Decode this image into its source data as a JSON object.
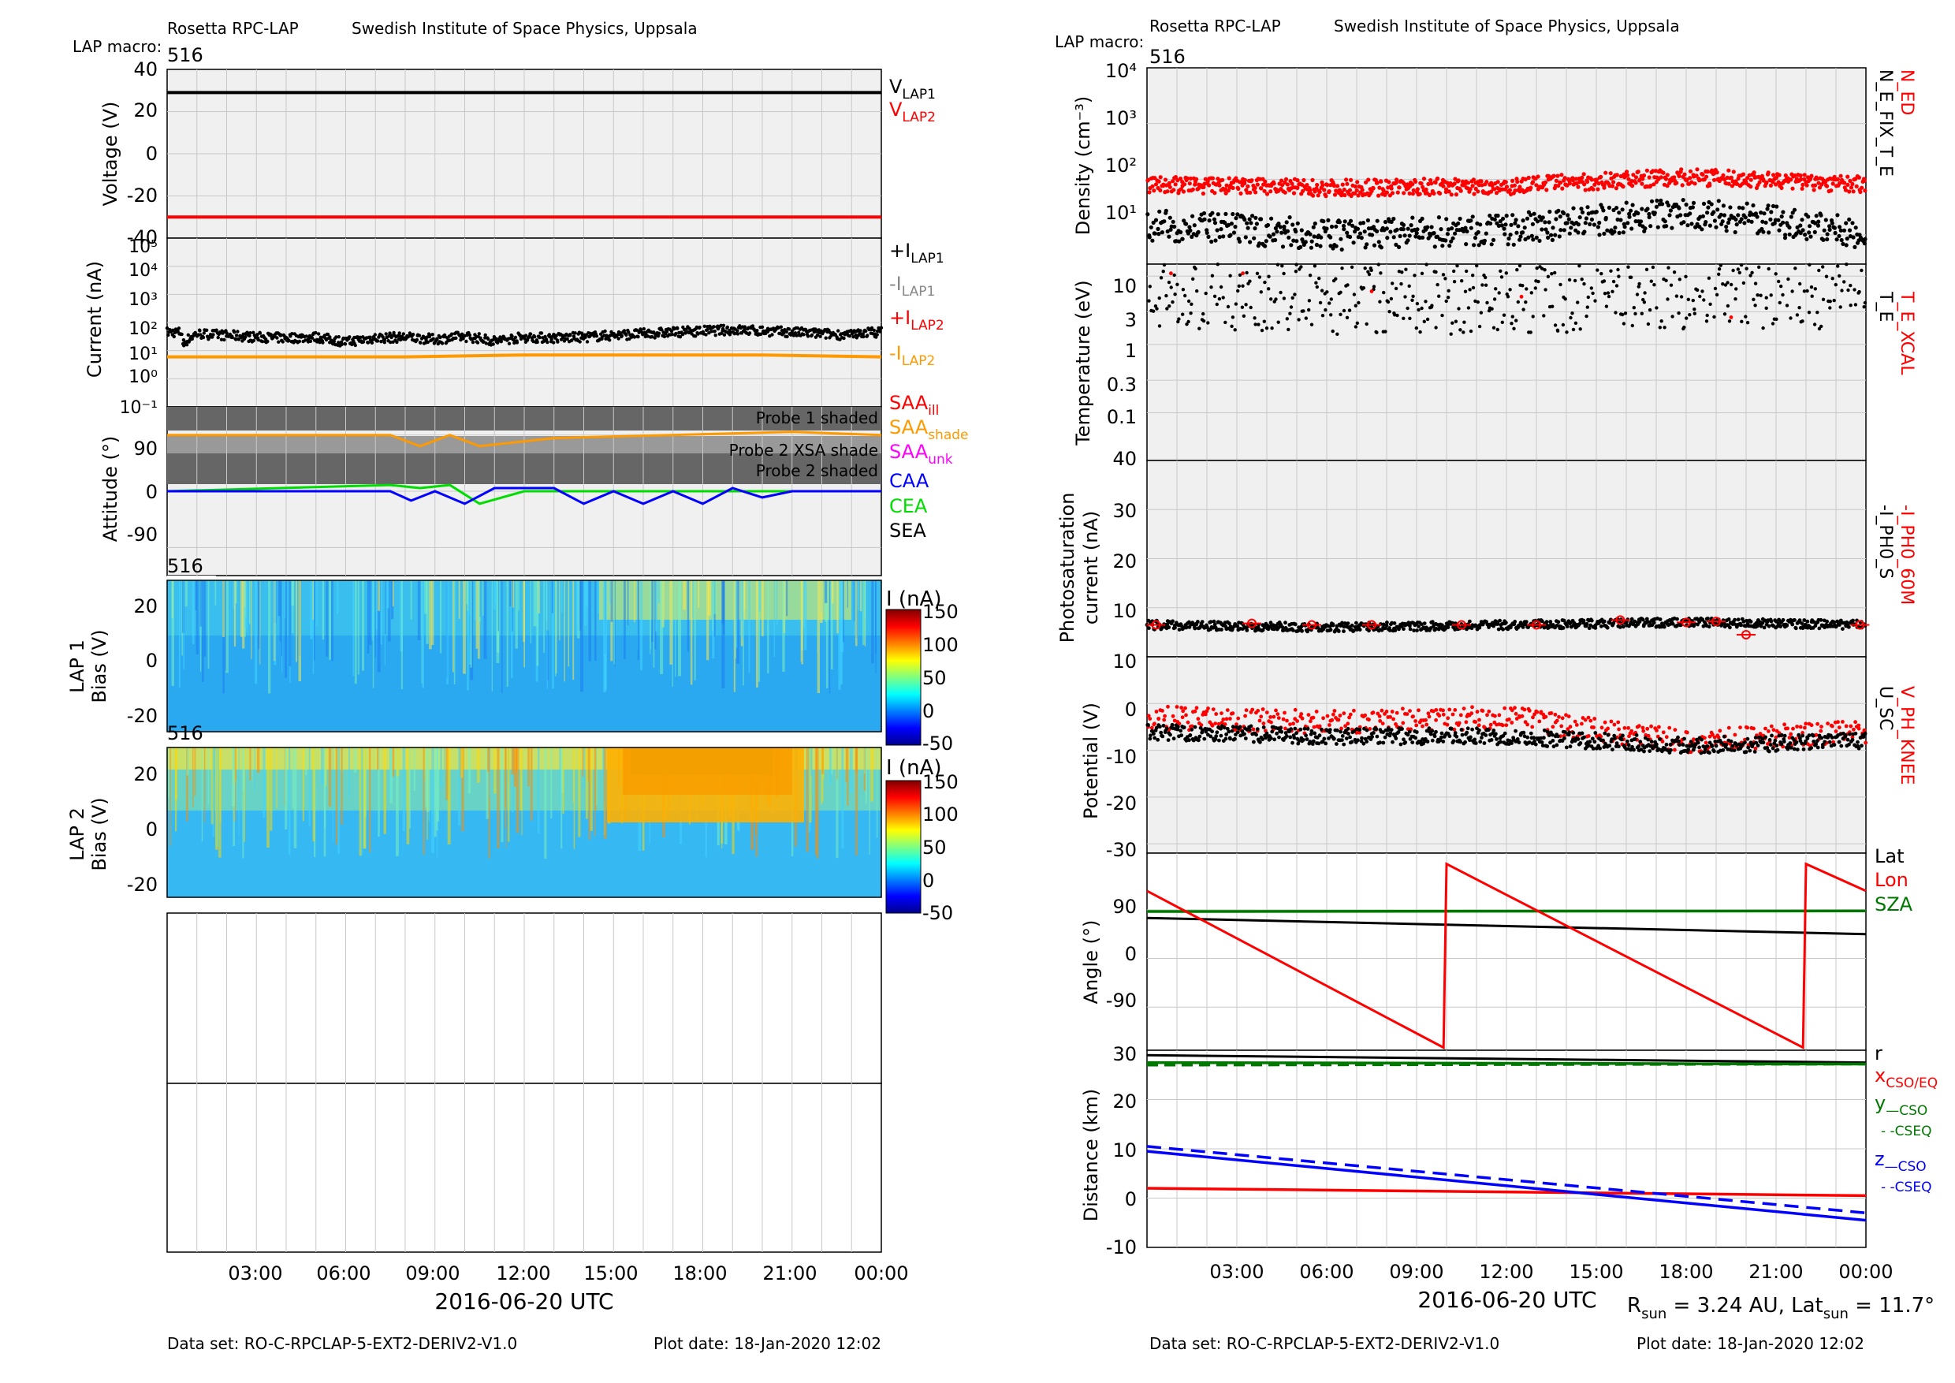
{
  "colors": {
    "black": "#000000",
    "red": "#ff0000",
    "orange": "#ff9900",
    "gray": "#888888",
    "blue": "#0000ff",
    "green": "#00dd00",
    "dkgreen": "#007700",
    "magenta": "#ff00ff",
    "panel_bg": "#f0f0f0",
    "grid": "#c8c8c8"
  },
  "left": {
    "header": {
      "instrument": "Rosetta RPC-LAP",
      "institute": "Swedish Institute of Space Physics, Uppsala",
      "macro_label": "LAP macro:",
      "macro_value": "516"
    },
    "voltage": {
      "ylabel": "Voltage (V)",
      "yticks": [
        "40",
        "20",
        "0",
        "-20",
        "-40"
      ],
      "legend": [
        {
          "base": "V",
          "sub": "LAP1",
          "color": "#000000"
        },
        {
          "base": "V",
          "sub": "LAP2",
          "color": "#ff0000"
        }
      ]
    },
    "current": {
      "ylabel": "Current (nA)",
      "yticks": [
        "10⁵",
        "10⁴",
        "10³",
        "10²",
        "10¹",
        "10⁰",
        "10⁻¹"
      ],
      "legend": [
        {
          "base": "+I",
          "sub": "LAP1",
          "color": "#000000"
        },
        {
          "base": "-I",
          "sub": "LAP1",
          "color": "#888888"
        },
        {
          "base": "+I",
          "sub": "LAP2",
          "color": "#ff0000"
        },
        {
          "base": "-I",
          "sub": "LAP2",
          "color": "#ff9900"
        }
      ]
    },
    "attitude": {
      "ylabel": "Attitude (°)",
      "yticks": [
        "90",
        "0",
        "-90"
      ],
      "bands": [
        "Probe 1 shaded",
        "Probe 2 XSA shade",
        "Probe 2 shaded"
      ],
      "legend": [
        {
          "base": "SAA",
          "sub": "ill",
          "color": "#ff0000"
        },
        {
          "base": "SAA",
          "sub": "shade",
          "color": "#ff9900"
        },
        {
          "base": "SAA",
          "sub": "unk",
          "color": "#ff00ff"
        },
        {
          "base": "CAA",
          "sub": "",
          "color": "#0000ff"
        },
        {
          "base": "CEA",
          "sub": "",
          "color": "#00dd00"
        },
        {
          "base": "SEA",
          "sub": "",
          "color": "#000000"
        }
      ]
    },
    "lap1": {
      "ylabel1": "LAP 1",
      "ylabel2": "Bias (V)",
      "macro": "516",
      "yticks": [
        "20",
        "0",
        "-20"
      ],
      "cbar_title": "I (nA)",
      "cbar_ticks": [
        "150",
        "100",
        "50",
        "0",
        "-50"
      ]
    },
    "lap2": {
      "ylabel1": "LAP 2",
      "ylabel2": "Bias (V)",
      "macro": "516",
      "yticks": [
        "20",
        "0",
        "-20"
      ],
      "cbar_title": "I (nA)",
      "cbar_ticks": [
        "150",
        "100",
        "50",
        "0",
        "-50"
      ]
    },
    "xticks": [
      "03:00",
      "06:00",
      "09:00",
      "12:00",
      "15:00",
      "18:00",
      "21:00",
      "00:00"
    ],
    "xlabel": "2016-06-20 UTC",
    "footer": {
      "dataset": "Data set: RO-C-RPCLAP-5-EXT2-DERIV2-V1.0",
      "plotdate": "Plot date: 18-Jan-2020 12:02"
    }
  },
  "right": {
    "header": {
      "instrument": "Rosetta RPC-LAP",
      "institute": "Swedish Institute of Space Physics, Uppsala",
      "macro_label": "LAP macro:",
      "macro_value": "516"
    },
    "density": {
      "ylabel": "Density (cm⁻³)",
      "yticks": [
        "10⁴",
        "10³",
        "10²",
        "10¹"
      ],
      "legend_red": "N_ED",
      "legend_black": "N_E_FIX_T_E"
    },
    "temperature": {
      "ylabel": "Temperature (eV)",
      "yticks": [
        "10",
        "3",
        "1",
        "0.3",
        "0.1"
      ],
      "legend_red": "T_E_XCAL",
      "legend_black": "T_E"
    },
    "photo": {
      "ylabel1": "Photosaturation",
      "ylabel2": "current (nA)",
      "yticks": [
        "40",
        "30",
        "20",
        "10"
      ],
      "legend_red": "-I_PH0_60M",
      "legend_black": "-I_PH0_S"
    },
    "potential": {
      "ylabel": "Potential (V)",
      "yticks": [
        "10",
        "0",
        "-10",
        "-20",
        "-30"
      ],
      "legend_red": "V_PH_KNEE",
      "legend_black": "U_SC"
    },
    "angle": {
      "ylabel": "Angle (°)",
      "yticks": [
        "90",
        "0",
        "-90"
      ],
      "legend": [
        {
          "text": "Lat",
          "color": "#000000"
        },
        {
          "text": "Lon",
          "color": "#ff0000"
        },
        {
          "text": "SZA",
          "color": "#007700"
        }
      ]
    },
    "distance": {
      "ylabel": "Distance (km)",
      "yticks": [
        "30",
        "20",
        "10",
        "0",
        "-10"
      ],
      "legend": [
        {
          "base": "r",
          "sub": "",
          "color": "#000000"
        },
        {
          "base": "x",
          "sub": "CSO/EQ",
          "color": "#ff0000"
        },
        {
          "base": "y",
          "sub": "—CSO",
          "color": "#007700"
        },
        {
          "base": "",
          "sub": "- -CSEQ",
          "color": "#007700"
        },
        {
          "base": "z",
          "sub": "—CSO",
          "color": "#0000ff"
        },
        {
          "base": "",
          "sub": "- -CSEQ",
          "color": "#0000ff"
        }
      ]
    },
    "xticks": [
      "03:00",
      "06:00",
      "09:00",
      "12:00",
      "15:00",
      "18:00",
      "21:00",
      "00:00"
    ],
    "xlabel": "2016-06-20 UTC",
    "info": {
      "r_label": "R",
      "r_sub": "sun",
      "r_value": " = 3.24 AU, Lat",
      "lat_sub": "sun",
      "lat_value": " = 11.7°"
    },
    "footer": {
      "dataset": "Data set: RO-C-RPCLAP-5-EXT2-DERIV2-V1.0",
      "plotdate": "Plot date: 18-Jan-2020 12:02"
    }
  },
  "chart_data": [
    {
      "type": "line",
      "id": "voltage",
      "ylim": [
        -40,
        40
      ],
      "xlim_hours": [
        0,
        24
      ],
      "series": [
        {
          "name": "V_LAP1",
          "x": [
            0,
            24
          ],
          "y": [
            29,
            29
          ]
        },
        {
          "name": "V_LAP2",
          "x": [
            0,
            24
          ],
          "y": [
            -30,
            -30
          ]
        }
      ]
    },
    {
      "type": "scatter",
      "id": "current",
      "ylog": true,
      "ylim": [
        0.1,
        100000
      ],
      "xlim_hours": [
        0,
        24
      ],
      "series": [
        {
          "name": "+I_LAP1",
          "x": [
            0.5,
            1,
            2,
            3,
            4,
            5,
            6,
            7,
            8,
            9,
            10,
            11,
            12,
            13,
            14,
            15,
            16,
            17,
            18,
            19,
            20,
            21,
            22,
            23,
            23.5
          ],
          "y": [
            15,
            40,
            35,
            30,
            28,
            30,
            20,
            28,
            30,
            25,
            32,
            22,
            30,
            28,
            30,
            35,
            40,
            45,
            50,
            55,
            50,
            45,
            40,
            35,
            45
          ]
        },
        {
          "name": "-I_LAP2",
          "x": [
            0,
            4,
            8,
            12,
            16,
            20,
            24
          ],
          "y": [
            6,
            6,
            6,
            7,
            7,
            7,
            6
          ]
        }
      ]
    },
    {
      "type": "line",
      "id": "attitude",
      "ylim": [
        -135,
        135
      ],
      "xlim_hours": [
        0,
        24
      ],
      "series": [
        {
          "name": "SAA_shade",
          "x": [
            0,
            7.5,
            8.5,
            9.5,
            10.5,
            13,
            21,
            24
          ],
          "y": [
            90,
            90,
            72,
            90,
            72,
            85,
            95,
            90
          ]
        },
        {
          "name": "CAA",
          "x": [
            0,
            7.5,
            8.2,
            9,
            10,
            11,
            13,
            14,
            15,
            16,
            17,
            18,
            19,
            20,
            21,
            24
          ],
          "y": [
            0,
            0,
            -15,
            0,
            -20,
            5,
            5,
            -20,
            0,
            -20,
            0,
            -20,
            5,
            -10,
            0,
            0
          ]
        },
        {
          "name": "CEA",
          "x": [
            0,
            7.5,
            8.5,
            9.5,
            10.5,
            12,
            24
          ],
          "y": [
            0,
            10,
            5,
            10,
            -20,
            0,
            0
          ]
        }
      ]
    },
    {
      "type": "heatmap",
      "id": "lap1",
      "title": "LAP 1",
      "ylim": [
        -25,
        28
      ],
      "zlim": [
        -50,
        150
      ],
      "zlabel": "I (nA)"
    },
    {
      "type": "heatmap",
      "id": "lap2",
      "title": "LAP 2",
      "ylim": [
        -25,
        28
      ],
      "zlim": [
        -50,
        150
      ],
      "zlabel": "I (nA)"
    },
    {
      "type": "scatter",
      "id": "density",
      "ylog": true,
      "ylim": [
        3,
        10000
      ],
      "xlim_hours": [
        0,
        24
      ],
      "series": [
        {
          "name": "N_ED",
          "x": [
            0,
            6,
            12,
            18,
            24
          ],
          "y": [
            80,
            70,
            75,
            110,
            80
          ]
        },
        {
          "name": "N_E_FIX_T_E",
          "x": [
            0,
            6,
            12,
            18,
            24
          ],
          "y": [
            15,
            10,
            12,
            25,
            10
          ]
        }
      ]
    },
    {
      "type": "scatter",
      "id": "temperature",
      "ylog": true,
      "ylim": [
        0.02,
        15
      ],
      "xlim_hours": [
        0,
        24
      ],
      "series": [
        {
          "name": "T_E",
          "x": [
            0,
            6,
            12,
            18,
            24
          ],
          "y": [
            6,
            5,
            5,
            6,
            6
          ]
        }
      ]
    },
    {
      "type": "scatter",
      "id": "photo",
      "ylim": [
        0,
        40
      ],
      "xlim_hours": [
        0,
        24
      ],
      "series": [
        {
          "name": "-I_PH0_S",
          "x": [
            0,
            6,
            12,
            18,
            24
          ],
          "y": [
            6.5,
            6,
            6.5,
            7,
            6.5
          ]
        },
        {
          "name": "-I_PH0_60M",
          "x": [
            0.3,
            3.5,
            5.5,
            7.5,
            10.5,
            13,
            15.8,
            18,
            19,
            20,
            23.8
          ],
          "y": [
            6.5,
            6.8,
            6.5,
            6.5,
            6.5,
            6.5,
            7.5,
            7,
            7.2,
            4.5,
            6.5
          ]
        }
      ]
    },
    {
      "type": "scatter",
      "id": "potential",
      "ylim": [
        -32,
        10
      ],
      "xlim_hours": [
        0,
        24
      ],
      "series": [
        {
          "name": "U_SC",
          "x": [
            0,
            6,
            12,
            18,
            24
          ],
          "y": [
            -6,
            -7,
            -7,
            -9,
            -8
          ]
        },
        {
          "name": "V_PH_KNEE",
          "x": [
            0,
            6,
            12,
            18,
            24
          ],
          "y": [
            -3,
            -4,
            -3,
            -8,
            -6
          ]
        }
      ]
    },
    {
      "type": "line",
      "id": "angle",
      "ylim": [
        -170,
        195
      ],
      "xlim_hours": [
        0,
        24
      ],
      "series": [
        {
          "name": "Lat",
          "x": [
            0,
            24
          ],
          "y": [
            75,
            45
          ]
        },
        {
          "name": "Lon",
          "x": [
            0,
            9.9,
            10.0,
            21.9,
            22.0,
            24
          ],
          "y": [
            125,
            -165,
            175,
            -165,
            175,
            125
          ]
        },
        {
          "name": "SZA",
          "x": [
            0,
            24
          ],
          "y": [
            87,
            88
          ]
        }
      ]
    },
    {
      "type": "line",
      "id": "distance",
      "ylim": [
        -10,
        30
      ],
      "xlim_hours": [
        0,
        24
      ],
      "series": [
        {
          "name": "r",
          "x": [
            0,
            24
          ],
          "y": [
            29,
            27.5
          ]
        },
        {
          "name": "x_CSO/EQ",
          "x": [
            0,
            24
          ],
          "y": [
            2,
            0.5
          ]
        },
        {
          "name": "y_CSO",
          "x": [
            0,
            24
          ],
          "y": [
            27.5,
            27.2
          ]
        },
        {
          "name": "y_CSEQ",
          "x": [
            0,
            24
          ],
          "y": [
            27,
            27.2
          ]
        },
        {
          "name": "z_CSO",
          "x": [
            0,
            24
          ],
          "y": [
            9.5,
            -4.5
          ]
        },
        {
          "name": "z_CSEQ",
          "x": [
            0,
            24
          ],
          "y": [
            10.5,
            -3
          ]
        }
      ]
    }
  ]
}
